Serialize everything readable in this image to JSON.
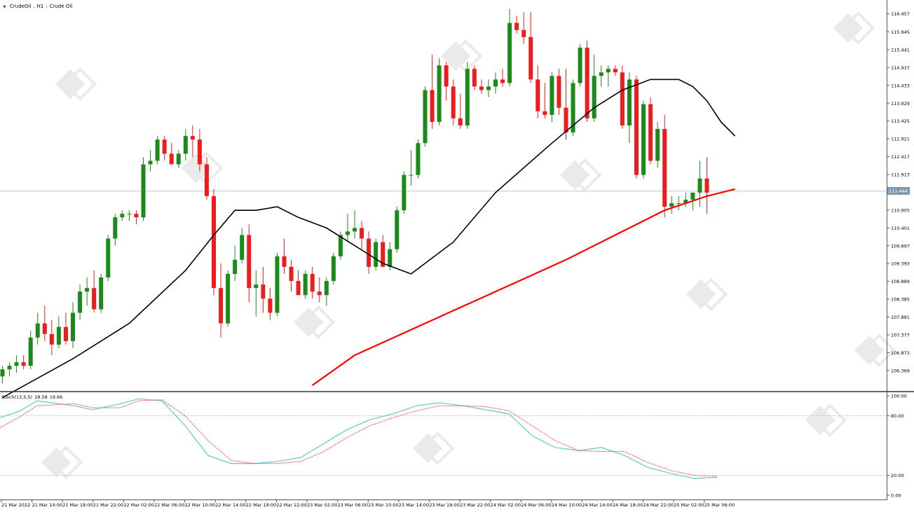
{
  "header": {
    "symbol": "CrudeOil",
    "timeframe": "H1",
    "description": "Crude Oil"
  },
  "indicator": {
    "name": "Stoch(13,5,5)",
    "main_value": "18.58",
    "signal_value": "19.66"
  },
  "colors": {
    "bull": "#1a8a1a",
    "bear": "#ee1c1c",
    "ma_fast": "#000000",
    "ma_slow": "#ff0000",
    "stoch_main": "#5fc8d0",
    "stoch_signal": "#ff3b3b",
    "price_line": "#b9c8d8",
    "price_tag": "#7f98b0"
  },
  "chart_data": [
    {
      "type": "candlestick",
      "title": "",
      "price_range": [
        105.85,
        116.65
      ],
      "y_ticks": [
        "116.457",
        "115.945",
        "115.441",
        "114.937",
        "114.433",
        "113.929",
        "113.425",
        "112.921",
        "112.417",
        "111.913",
        "111.409",
        "110.905",
        "110.401",
        "109.897",
        "109.393",
        "108.889",
        "108.385",
        "107.881",
        "107.377",
        "106.873",
        "106.369"
      ],
      "current_price": "111.444",
      "x_labels": [
        "21 Mar 2022",
        "21 Mar 14:00",
        "21 Mar 18:00",
        "21 Mar 22:00",
        "22 Mar 02:00",
        "22 Mar 06:00",
        "22 Mar 10:00",
        "22 Mar 14:00",
        "22 Mar 18:00",
        "22 Mar 22:00",
        "23 Mar 02:00",
        "23 Mar 06:00",
        "23 Mar 10:00",
        "23 Mar 14:00",
        "23 Mar 18:00",
        "23 Mar 22:00",
        "24 Mar 02:00",
        "24 Mar 06:00",
        "24 Mar 10:00",
        "24 Mar 14:00",
        "24 Mar 18:00",
        "24 Mar 22:00",
        "25 Mar 02:00",
        "25 Mar 06:00"
      ],
      "candles": [
        [
          106.2,
          106.5,
          106.0,
          106.4
        ],
        [
          106.4,
          106.6,
          106.2,
          106.5
        ],
        [
          106.5,
          106.8,
          106.3,
          106.6
        ],
        [
          106.6,
          106.8,
          106.4,
          106.5
        ],
        [
          106.5,
          107.5,
          106.4,
          107.3
        ],
        [
          107.3,
          108.0,
          107.1,
          107.7
        ],
        [
          107.7,
          108.2,
          107.2,
          107.4
        ],
        [
          107.4,
          107.8,
          106.8,
          107.1
        ],
        [
          107.1,
          107.9,
          107.0,
          107.6
        ],
        [
          107.6,
          108.0,
          107.1,
          107.2
        ],
        [
          107.2,
          108.3,
          107.0,
          108.0
        ],
        [
          108.0,
          108.8,
          107.8,
          108.6
        ],
        [
          108.6,
          109.0,
          108.2,
          108.7
        ],
        [
          108.7,
          109.2,
          108.0,
          108.1
        ],
        [
          108.1,
          109.1,
          108.0,
          109.0
        ],
        [
          109.0,
          110.2,
          108.9,
          110.1
        ],
        [
          110.1,
          110.8,
          109.9,
          110.7
        ],
        [
          110.7,
          110.9,
          110.6,
          110.8
        ],
        [
          110.8,
          110.9,
          110.6,
          110.8
        ],
        [
          110.8,
          110.9,
          110.5,
          110.7
        ],
        [
          110.7,
          112.4,
          110.6,
          112.2
        ],
        [
          112.2,
          112.6,
          112.0,
          112.3
        ],
        [
          112.3,
          113.0,
          112.2,
          112.9
        ],
        [
          112.9,
          113.0,
          112.3,
          112.5
        ],
        [
          112.5,
          112.8,
          112.3,
          112.2
        ],
        [
          112.2,
          112.6,
          112.1,
          112.5
        ],
        [
          112.5,
          113.2,
          112.3,
          113.0
        ],
        [
          113.0,
          113.3,
          112.4,
          112.9
        ],
        [
          112.9,
          113.2,
          112.0,
          112.2
        ],
        [
          112.2,
          112.4,
          111.2,
          111.3
        ],
        [
          111.3,
          111.5,
          108.5,
          108.7
        ],
        [
          108.7,
          109.4,
          107.3,
          107.7
        ],
        [
          107.7,
          109.2,
          107.6,
          109.1
        ],
        [
          109.1,
          109.9,
          108.9,
          109.5
        ],
        [
          109.5,
          110.4,
          109.4,
          110.2
        ],
        [
          110.2,
          110.5,
          108.3,
          108.7
        ],
        [
          108.7,
          109.2,
          107.9,
          108.8
        ],
        [
          108.8,
          109.3,
          108.0,
          108.4
        ],
        [
          108.4,
          108.7,
          107.8,
          108.0
        ],
        [
          108.0,
          109.7,
          107.9,
          109.6
        ],
        [
          109.6,
          110.1,
          109.1,
          109.3
        ],
        [
          109.3,
          109.5,
          108.6,
          108.9
        ],
        [
          108.9,
          109.2,
          108.5,
          108.5
        ],
        [
          108.5,
          109.2,
          108.4,
          109.1
        ],
        [
          109.1,
          109.3,
          108.4,
          108.6
        ],
        [
          108.6,
          109.0,
          108.3,
          108.5
        ],
        [
          108.5,
          109.0,
          108.2,
          108.9
        ],
        [
          108.9,
          109.7,
          108.8,
          109.6
        ],
        [
          109.6,
          110.3,
          109.5,
          110.2
        ],
        [
          110.2,
          110.8,
          110.0,
          110.3
        ],
        [
          110.3,
          110.9,
          110.1,
          110.4
        ],
        [
          110.4,
          110.6,
          109.8,
          110.1
        ],
        [
          110.1,
          110.3,
          109.1,
          109.3
        ],
        [
          109.3,
          110.1,
          109.2,
          110.0
        ],
        [
          110.0,
          110.2,
          109.3,
          109.3
        ],
        [
          109.3,
          110.0,
          109.2,
          109.8
        ],
        [
          109.8,
          111.0,
          109.7,
          110.9
        ],
        [
          110.9,
          112.0,
          110.8,
          111.9
        ],
        [
          111.9,
          112.6,
          111.6,
          111.9
        ],
        [
          111.9,
          112.9,
          111.8,
          112.8
        ],
        [
          112.8,
          114.4,
          112.7,
          114.3
        ],
        [
          114.3,
          115.3,
          113.2,
          113.4
        ],
        [
          113.4,
          115.2,
          113.3,
          115.0
        ],
        [
          115.0,
          115.1,
          114.0,
          114.4
        ],
        [
          114.4,
          114.6,
          113.3,
          113.5
        ],
        [
          113.5,
          114.2,
          113.2,
          113.3
        ],
        [
          113.3,
          115.1,
          113.2,
          114.9
        ],
        [
          114.9,
          115.0,
          114.3,
          114.4
        ],
        [
          114.4,
          114.6,
          114.2,
          114.3
        ],
        [
          114.3,
          114.6,
          114.1,
          114.4
        ],
        [
          114.4,
          114.8,
          114.2,
          114.6
        ],
        [
          114.6,
          114.9,
          114.4,
          114.5
        ],
        [
          114.5,
          116.6,
          114.4,
          116.2
        ],
        [
          116.2,
          116.4,
          115.9,
          116.0
        ],
        [
          116.0,
          116.5,
          115.6,
          115.8
        ],
        [
          115.8,
          116.5,
          114.5,
          114.6
        ],
        [
          114.6,
          115.0,
          113.5,
          113.7
        ],
        [
          113.7,
          114.5,
          113.5,
          113.6
        ],
        [
          113.6,
          114.8,
          113.4,
          114.7
        ],
        [
          114.7,
          114.9,
          113.6,
          113.8
        ],
        [
          113.8,
          114.9,
          112.9,
          113.1
        ],
        [
          113.1,
          114.6,
          113.0,
          114.5
        ],
        [
          114.5,
          115.6,
          114.4,
          115.5
        ],
        [
          115.5,
          115.7,
          113.4,
          113.5
        ],
        [
          113.5,
          115.3,
          113.4,
          114.7
        ],
        [
          114.7,
          115.0,
          114.4,
          114.8
        ],
        [
          114.8,
          115.0,
          114.4,
          114.9
        ],
        [
          114.9,
          115.0,
          114.7,
          114.8
        ],
        [
          114.8,
          115.0,
          113.2,
          113.3
        ],
        [
          113.3,
          114.8,
          112.8,
          114.6
        ],
        [
          114.6,
          114.7,
          111.8,
          111.9
        ],
        [
          111.9,
          114.0,
          111.8,
          113.9
        ],
        [
          113.9,
          114.1,
          112.2,
          112.3
        ],
        [
          112.3,
          113.4,
          112.1,
          113.2
        ],
        [
          113.2,
          113.6,
          110.7,
          111.0
        ],
        [
          111.0,
          111.3,
          110.8,
          111.1
        ],
        [
          111.1,
          111.3,
          110.9,
          111.1
        ],
        [
          111.1,
          111.4,
          111.0,
          111.2
        ],
        [
          111.2,
          111.4,
          110.9,
          111.4
        ],
        [
          111.4,
          112.3,
          111.0,
          111.8
        ],
        [
          111.8,
          112.4,
          110.8,
          111.4
        ]
      ],
      "ma_fast": [
        [
          0,
          105.6
        ],
        [
          10,
          106.7
        ],
        [
          18,
          107.7
        ],
        [
          26,
          109.2
        ],
        [
          30,
          110.2
        ],
        [
          33,
          110.9
        ],
        [
          36,
          110.9
        ],
        [
          39,
          111.0
        ],
        [
          42,
          110.7
        ],
        [
          46,
          110.4
        ],
        [
          50,
          109.9
        ],
        [
          54,
          109.4
        ],
        [
          58,
          109.1
        ],
        [
          60,
          109.4
        ],
        [
          64,
          110.0
        ],
        [
          70,
          111.4
        ],
        [
          78,
          112.8
        ],
        [
          84,
          113.8
        ],
        [
          88,
          114.3
        ],
        [
          92,
          114.6
        ],
        [
          96,
          114.6
        ],
        [
          98,
          114.4
        ],
        [
          100,
          114.0
        ],
        [
          102,
          113.4
        ],
        [
          104,
          113.0
        ]
      ],
      "ma_slow": [
        [
          44,
          105.95
        ],
        [
          50,
          106.8
        ],
        [
          60,
          107.7
        ],
        [
          70,
          108.6
        ],
        [
          80,
          109.5
        ],
        [
          88,
          110.3
        ],
        [
          94,
          110.9
        ],
        [
          100,
          111.3
        ],
        [
          104,
          111.5
        ]
      ]
    },
    {
      "type": "line",
      "title": "Stoch(13,5,5)",
      "ylim": [
        0,
        100
      ],
      "y_ticks": [
        "100.00",
        "80.00",
        "20.00",
        "0.00"
      ],
      "levels": [
        80,
        20
      ],
      "series": [
        {
          "name": "main",
          "points": [
            [
              0,
              78
            ],
            [
              4,
              84
            ],
            [
              8,
              95
            ],
            [
              16,
              90
            ],
            [
              20,
              86
            ],
            [
              26,
              92
            ],
            [
              30,
              97
            ],
            [
              35,
              95
            ],
            [
              40,
              70
            ],
            [
              45,
              40
            ],
            [
              50,
              32
            ],
            [
              55,
              32
            ],
            [
              60,
              34
            ],
            [
              65,
              38
            ],
            [
              70,
              52
            ],
            [
              75,
              66
            ],
            [
              80,
              76
            ],
            [
              85,
              82
            ],
            [
              90,
              90
            ],
            [
              95,
              93
            ],
            [
              100,
              90
            ],
            [
              105,
              86
            ],
            [
              110,
              82
            ],
            [
              115,
              60
            ],
            [
              120,
              48
            ],
            [
              125,
              45
            ],
            [
              130,
              48
            ],
            [
              135,
              40
            ],
            [
              140,
              28
            ],
            [
              145,
              22
            ],
            [
              150,
              17
            ],
            [
              155,
              18
            ]
          ]
        },
        {
          "name": "signal",
          "points": [
            [
              0,
              68
            ],
            [
              4,
              78
            ],
            [
              8,
              90
            ],
            [
              16,
              92
            ],
            [
              20,
              88
            ],
            [
              26,
              88
            ],
            [
              30,
              95
            ],
            [
              35,
              96
            ],
            [
              40,
              80
            ],
            [
              45,
              55
            ],
            [
              50,
              35
            ],
            [
              55,
              32
            ],
            [
              60,
              32
            ],
            [
              65,
              34
            ],
            [
              70,
              44
            ],
            [
              75,
              58
            ],
            [
              80,
              70
            ],
            [
              85,
              78
            ],
            [
              90,
              85
            ],
            [
              95,
              90
            ],
            [
              100,
              90
            ],
            [
              105,
              89
            ],
            [
              110,
              85
            ],
            [
              115,
              70
            ],
            [
              120,
              55
            ],
            [
              125,
              45
            ],
            [
              130,
              44
            ],
            [
              135,
              44
            ],
            [
              140,
              33
            ],
            [
              145,
              25
            ],
            [
              150,
              20
            ],
            [
              155,
              19
            ]
          ]
        }
      ]
    }
  ]
}
